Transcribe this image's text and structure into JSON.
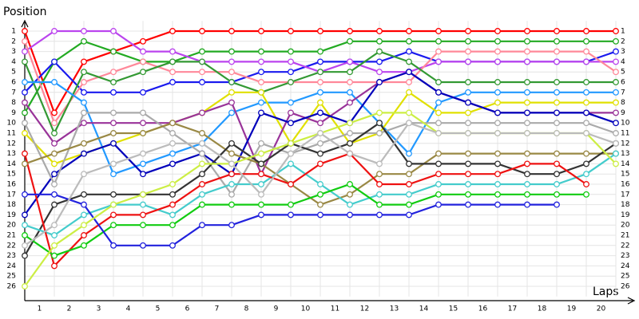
{
  "chart_data": {
    "type": "line",
    "y_label": "Position",
    "x_label": "Laps",
    "x": [
      0,
      1,
      2,
      3,
      4,
      5,
      6,
      7,
      8,
      9,
      10,
      11,
      12,
      13,
      14,
      15,
      16,
      17,
      18,
      19,
      20
    ],
    "xlim": [
      0,
      20
    ],
    "xticks": [
      {
        "value": 0.5,
        "label": "1"
      },
      {
        "value": 1.5,
        "label": "2"
      },
      {
        "value": 2.5,
        "label": "3"
      },
      {
        "value": 3.5,
        "label": "4"
      },
      {
        "value": 4.5,
        "label": "5"
      },
      {
        "value": 5.5,
        "label": "6"
      },
      {
        "value": 6.5,
        "label": "7"
      },
      {
        "value": 7.5,
        "label": "8"
      },
      {
        "value": 8.5,
        "label": "9"
      },
      {
        "value": 9.5,
        "label": "10"
      },
      {
        "value": 10.5,
        "label": "11"
      },
      {
        "value": 11.5,
        "label": "12"
      },
      {
        "value": 12.5,
        "label": "13"
      },
      {
        "value": 13.5,
        "label": "14"
      },
      {
        "value": 14.5,
        "label": "15"
      },
      {
        "value": 15.5,
        "label": "16"
      },
      {
        "value": 16.5,
        "label": "17"
      },
      {
        "value": 17.5,
        "label": "18"
      },
      {
        "value": 18.5,
        "label": "19"
      },
      {
        "value": 19.5,
        "label": "20"
      }
    ],
    "ylim": [
      27,
      0
    ],
    "yticks": [
      1,
      2,
      3,
      4,
      5,
      6,
      7,
      8,
      9,
      10,
      11,
      12,
      13,
      14,
      15,
      16,
      17,
      18,
      19,
      20,
      21,
      22,
      23,
      24,
      25,
      26
    ],
    "grid": true,
    "series": [
      {
        "color": "#ff0000",
        "values": [
          1,
          9,
          4,
          3,
          2,
          1,
          1,
          1,
          1,
          1,
          1,
          1,
          1,
          1,
          1,
          1,
          1,
          1,
          1,
          1,
          1
        ]
      },
      {
        "color": "#22aa22",
        "values": [
          9,
          4,
          2,
          3,
          4,
          4,
          3,
          3,
          3,
          3,
          3,
          2,
          2,
          2,
          2,
          2,
          2,
          2,
          2,
          2,
          2
        ]
      },
      {
        "color": "#1a1aee",
        "values": [
          7,
          4,
          7,
          7,
          7,
          6,
          6,
          6,
          5,
          5,
          4,
          4,
          4,
          3,
          4,
          4,
          4,
          4,
          4,
          4,
          3
        ]
      },
      {
        "color": "#bb44ee",
        "values": [
          3,
          1,
          1,
          1,
          3,
          3,
          4,
          4,
          4,
          4,
          5,
          4,
          5,
          5,
          4,
          4,
          4,
          4,
          4,
          4,
          4
        ]
      },
      {
        "color": "#ff8899",
        "values": [
          2,
          10,
          6,
          5,
          4,
          5,
          5,
          5,
          6,
          6,
          6,
          6,
          6,
          6,
          3,
          3,
          3,
          3,
          3,
          3,
          5
        ]
      },
      {
        "color": "#339933",
        "values": [
          4,
          11,
          5,
          6,
          5,
          4,
          4,
          6,
          7,
          6,
          5,
          5,
          3,
          4,
          6,
          6,
          6,
          6,
          6,
          6,
          6
        ]
      },
      {
        "color": "#2299ff",
        "values": [
          6,
          6,
          8,
          15,
          14,
          13,
          12,
          9,
          8,
          8,
          7,
          7,
          10,
          13,
          8,
          7,
          7,
          7,
          7,
          7,
          7
        ]
      },
      {
        "color": "#e0e000",
        "values": [
          11,
          14,
          13,
          12,
          11,
          10,
          9,
          7,
          7,
          12,
          8,
          12,
          11,
          7,
          9,
          9,
          8,
          8,
          8,
          8,
          8
        ]
      },
      {
        "color": "#993399",
        "values": [
          8,
          12,
          10,
          10,
          10,
          10,
          9,
          8,
          15,
          9,
          10,
          8,
          6,
          5,
          7,
          8,
          9,
          9,
          9,
          9,
          9
        ]
      },
      {
        "color": "#0000bb",
        "values": [
          19,
          15,
          13,
          12,
          15,
          14,
          13,
          15,
          9,
          10,
          9,
          10,
          6,
          5,
          7,
          8,
          9,
          9,
          9,
          9,
          10
        ]
      },
      {
        "color": "#aaaaaa",
        "values": [
          10,
          16,
          9,
          9,
          9,
          11,
          13,
          17,
          12,
          13,
          12,
          11,
          11,
          10,
          10,
          10,
          10,
          10,
          10,
          10,
          11
        ]
      },
      {
        "color": "#998844",
        "values": [
          14,
          13,
          12,
          11,
          11,
          10,
          11,
          13,
          14,
          16,
          18,
          17,
          15,
          15,
          13,
          13,
          13,
          13,
          13,
          13,
          13
        ]
      },
      {
        "color": "#333333",
        "values": [
          23,
          18,
          17,
          17,
          17,
          17,
          15,
          12,
          14,
          12,
          13,
          12,
          10,
          14,
          14,
          14,
          14,
          15,
          15,
          14,
          12
        ]
      },
      {
        "color": "#44cccc",
        "values": [
          20,
          21,
          19,
          18,
          18,
          19,
          17,
          16,
          16,
          14,
          16,
          18,
          17,
          17,
          16,
          16,
          16,
          16,
          16,
          15,
          13
        ]
      },
      {
        "color": "#ee1111",
        "values": [
          13,
          24,
          21,
          19,
          19,
          18,
          16,
          15,
          15,
          16,
          14,
          13,
          16,
          16,
          15,
          15,
          15,
          14,
          14,
          16,
          null
        ]
      },
      {
        "color": "#11cc11",
        "values": [
          21,
          23,
          22,
          20,
          20,
          20,
          18,
          18,
          18,
          18,
          17,
          16,
          18,
          18,
          17,
          17,
          17,
          17,
          17,
          17,
          null
        ]
      },
      {
        "color": "#2222dd",
        "values": [
          17,
          17,
          18,
          22,
          22,
          22,
          20,
          20,
          19,
          19,
          19,
          19,
          19,
          19,
          18,
          18,
          18,
          18,
          18,
          null,
          null
        ]
      },
      {
        "color": "#ccee44",
        "values": [
          26,
          22,
          20,
          18,
          17,
          16,
          14,
          14,
          13,
          12,
          11,
          10,
          9,
          9,
          11,
          11,
          11,
          11,
          11,
          11,
          14
        ]
      },
      {
        "color": "#bbbbbb",
        "values": [
          22,
          20,
          15,
          14,
          13,
          12,
          12,
          14,
          17,
          13,
          11,
          13,
          14,
          10,
          11,
          11,
          11,
          11,
          11,
          11,
          12
        ]
      }
    ]
  }
}
